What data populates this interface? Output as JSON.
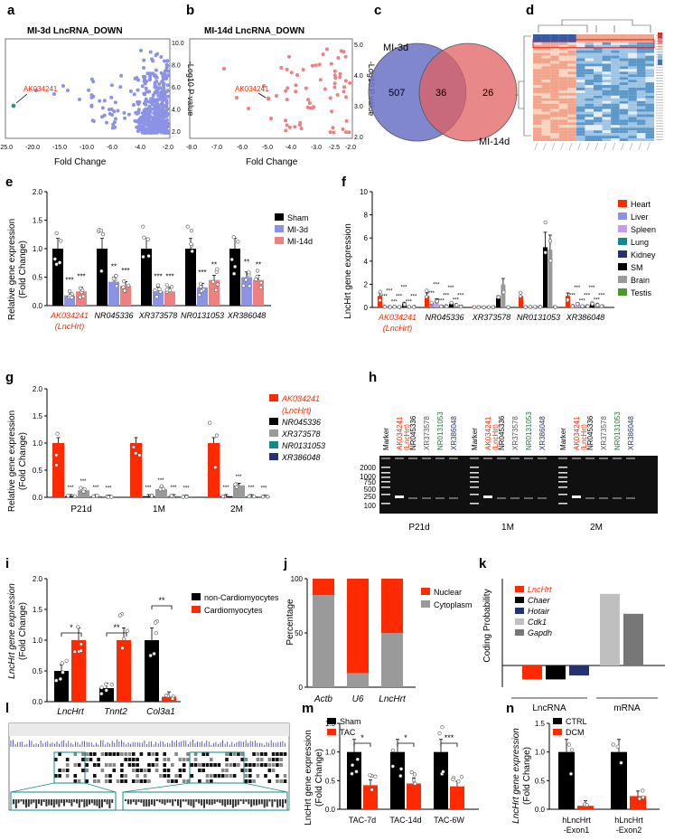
{
  "colors": {
    "black": "#000000",
    "blue": "#8c93e6",
    "red": "#f08080",
    "orange": "#ff2a00",
    "grey": "#9a9a9a",
    "lightgrey": "#bfbfbf",
    "darkgrey": "#777777",
    "green": "#1a7a3a",
    "teal": "#138a8a",
    "navy": "#24336f",
    "venn_blue": "#6a72c6",
    "venn_red": "#e06060"
  },
  "panels": {
    "a": {
      "letter": "a",
      "title": "MI-3d LncRNA_DOWN",
      "xlabel": "Fold Change",
      "ylabel": "-Log10 P value",
      "xticks": [
        "-25.0",
        "-20.0",
        "-15.0",
        "-10.0",
        "-6.0",
        "-4.0",
        "-2.0"
      ],
      "yticks": [
        "2.0",
        "4.0",
        "6.0",
        "8.0",
        "10.0"
      ],
      "annot": "AK034241"
    },
    "b": {
      "letter": "b",
      "title": "MI-14d LncRNA_DOWN",
      "xlabel": "Fold Change",
      "ylabel": "-Log10 P value",
      "xticks": [
        "-8.0",
        "-7.0",
        "-6.0",
        "-5.0",
        "-4.0",
        "-3.0",
        "-2.5",
        "-2.0"
      ],
      "yticks": [
        "2.0",
        "3.0",
        "4.0",
        "5.0"
      ],
      "annot": "AK034241"
    },
    "c": {
      "letter": "c",
      "left_label": "MI-3d",
      "right_label": "MI-14d",
      "left_only": "507",
      "overlap": "36",
      "right_only": "26"
    },
    "d": {
      "letter": "d"
    },
    "e": {
      "letter": "e",
      "ylabel1": "Relative gene expression",
      "ylabel2": "(Fold Change)",
      "yticks": [
        "0.0",
        "0.5",
        "1.0",
        "1.5",
        "2.0"
      ],
      "categories": [
        "AK034241",
        "NR045336",
        "XR373578",
        "NR0131053",
        "XR386048"
      ],
      "cat0_sub": "(LncHrt)",
      "legend": [
        "Sham",
        "MI-3d",
        "MI-14d"
      ],
      "stars": [
        "***",
        "***",
        "**",
        "***",
        "***",
        "***",
        "***",
        "**",
        "**",
        "**"
      ]
    },
    "f": {
      "letter": "f",
      "ylabel": "LncHrt gene expression",
      "yticks": [
        "0",
        "2",
        "4",
        "6",
        "8",
        "10"
      ],
      "categories": [
        "AK034241",
        "NR045336",
        "XR373578",
        "NR0131053",
        "XR386048"
      ],
      "cat0_sub": "(LncHrt)",
      "legend": [
        "Heart",
        "Liver",
        "Spleen",
        "Lung",
        "Kidney",
        "SM",
        "Brain",
        "Testis"
      ]
    },
    "g": {
      "letter": "g",
      "ylabel1": "Relative gene expression",
      "ylabel2": "(Fold Change)",
      "yticks": [
        "0.0",
        "0.5",
        "1.0",
        "1.5",
        "2.0"
      ],
      "categories": [
        "P21d",
        "1M",
        "2M"
      ],
      "legend": [
        "AK034241",
        "(LncHrt)",
        "NR045336",
        "XR373578",
        "NR0131053",
        "XR386048"
      ],
      "stars": "***"
    },
    "h": {
      "letter": "h",
      "lanes": [
        "Marker",
        "AK034241",
        "(LncHrt)",
        "NR045336",
        "XR373578",
        "NR0131053",
        "XR386048"
      ],
      "sizes": [
        "2000",
        "1000",
        "750",
        "500",
        "250",
        "100"
      ],
      "groups": [
        "P21d",
        "1M",
        "2M"
      ]
    },
    "i": {
      "letter": "i",
      "ylabel1": "LncHrt gene expression",
      "ylabel2": "(Fold Change)",
      "yticks": [
        "0.0",
        "0.5",
        "1.0",
        "1.5",
        "2.0"
      ],
      "categories": [
        "LncHrt",
        "Tnnt2",
        "Col3a1"
      ],
      "legend": [
        "non-Cardiomyocytes",
        "Cardiomyocytes"
      ],
      "stars": [
        "*",
        "**",
        "**"
      ]
    },
    "j": {
      "letter": "j",
      "ylabel": "Percentage",
      "yticks": [
        "0",
        "50",
        "100"
      ],
      "categories": [
        "Actb",
        "U6",
        "LncHrt"
      ],
      "legend": [
        "Nuclear",
        "Cytoplasm"
      ]
    },
    "k": {
      "letter": "k",
      "ylabel": "Coding Probability",
      "legend": [
        "LncHrt",
        "Chaer",
        "Hotair",
        "Cdk1",
        "Gapdh"
      ],
      "groups": [
        "LncRNA",
        "mRNA"
      ]
    },
    "l": {
      "letter": "l"
    },
    "m": {
      "letter": "m",
      "ylabel1": "LncHrt gene expression",
      "ylabel2": "(Fold Change)",
      "yticks": [
        "0.0",
        "0.5",
        "1.0",
        "1.5"
      ],
      "categories": [
        "TAC-7d",
        "TAC-14d",
        "TAC-6W"
      ],
      "legend": [
        "Sham",
        "TAC"
      ],
      "stars": [
        "*",
        "*",
        "***"
      ]
    },
    "n": {
      "letter": "n",
      "ylabel1": "LncHrt gene expression",
      "ylabel2": "(Fold Change)",
      "yticks": [
        "0.0",
        "0.5",
        "1.0",
        "1.5"
      ],
      "cat1": [
        "hLncHrt",
        "-Exon1"
      ],
      "cat2": [
        "hLncHrt",
        "-Exon2"
      ],
      "legend": [
        "CTRL",
        "DCM"
      ]
    }
  },
  "chart_data": [
    {
      "panel": "e",
      "type": "bar",
      "categories": [
        "AK034241",
        "NR045336",
        "XR373578",
        "NR0131053",
        "XR386048"
      ],
      "series": [
        {
          "name": "Sham",
          "values": [
            1.0,
            1.0,
            1.0,
            1.0,
            1.0
          ]
        },
        {
          "name": "MI-3d",
          "values": [
            0.18,
            0.42,
            0.25,
            0.32,
            0.5
          ]
        },
        {
          "name": "MI-14d",
          "values": [
            0.25,
            0.35,
            0.25,
            0.45,
            0.45
          ]
        }
      ],
      "ylim": [
        0,
        2
      ]
    },
    {
      "panel": "f",
      "type": "bar",
      "categories": [
        "AK034241",
        "NR045336",
        "XR373578",
        "NR0131053",
        "XR386048"
      ],
      "series": [
        {
          "name": "Heart",
          "values": [
            1.0,
            1.0,
            0.02,
            1.0,
            1.0
          ]
        },
        {
          "name": "Liver",
          "values": [
            0.05,
            0.3,
            0.02,
            0.05,
            0.1
          ]
        },
        {
          "name": "Spleen",
          "values": [
            0.05,
            0.6,
            0.02,
            0.05,
            0.3
          ]
        },
        {
          "name": "Lung",
          "values": [
            0.05,
            0.1,
            0.02,
            0.05,
            0.1
          ]
        },
        {
          "name": "Kidney",
          "values": [
            0.05,
            0.1,
            0.02,
            0.05,
            0.1
          ]
        },
        {
          "name": "SM",
          "values": [
            0.35,
            0.3,
            0.8,
            5.2,
            0.3
          ]
        },
        {
          "name": "Brain",
          "values": [
            0.05,
            0.2,
            2.0,
            5.0,
            0.2
          ]
        },
        {
          "name": "Testis",
          "values": [
            0.05,
            0.1,
            0.02,
            0.05,
            0.1
          ]
        }
      ],
      "ylim": [
        0,
        10
      ]
    },
    {
      "panel": "g",
      "type": "bar",
      "categories": [
        "P21d",
        "1M",
        "2M"
      ],
      "series": [
        {
          "name": "AK034241 (LncHrt)",
          "values": [
            1.0,
            1.0,
            1.0
          ]
        },
        {
          "name": "NR045336",
          "values": [
            0.02,
            0.02,
            0.02
          ]
        },
        {
          "name": "XR373578",
          "values": [
            0.13,
            0.15,
            0.22
          ]
        },
        {
          "name": "NR0131053",
          "values": [
            0.02,
            0.02,
            0.02
          ]
        },
        {
          "name": "XR386048",
          "values": [
            0.01,
            0.01,
            0.01
          ]
        }
      ],
      "ylim": [
        0,
        2
      ]
    },
    {
      "panel": "i",
      "type": "bar",
      "categories": [
        "LncHrt",
        "Tnnt2",
        "Col3a1"
      ],
      "series": [
        {
          "name": "non-Cardiomyocytes",
          "values": [
            0.5,
            0.22,
            1.0
          ]
        },
        {
          "name": "Cardiomyocytes",
          "values": [
            1.0,
            1.0,
            0.08
          ]
        }
      ],
      "ylim": [
        0,
        2
      ]
    },
    {
      "panel": "j",
      "type": "bar",
      "categories": [
        "Actb",
        "U6",
        "LncHrt"
      ],
      "series": [
        {
          "name": "Cytoplasm",
          "values": [
            85,
            13,
            50
          ]
        },
        {
          "name": "Nuclear",
          "values": [
            15,
            87,
            50
          ]
        }
      ],
      "ylim": [
        0,
        100
      ]
    },
    {
      "panel": "k",
      "type": "bar",
      "categories": [
        "LncHrt",
        "Chaer",
        "Hotair",
        "Cdk1",
        "Gapdh"
      ],
      "values": [
        -0.14,
        -0.14,
        -0.1,
        0.72,
        0.52
      ]
    },
    {
      "panel": "m",
      "type": "bar",
      "categories": [
        "TAC-7d",
        "TAC-14d",
        "TAC-6W"
      ],
      "series": [
        {
          "name": "Sham",
          "values": [
            1.0,
            1.0,
            1.0
          ]
        },
        {
          "name": "TAC",
          "values": [
            0.42,
            0.45,
            0.4
          ]
        }
      ],
      "ylim": [
        0,
        1.5
      ]
    },
    {
      "panel": "n",
      "type": "bar",
      "categories": [
        "hLncHrt -Exon1",
        "hLncHrt -Exon2"
      ],
      "series": [
        {
          "name": "CTRL",
          "values": [
            1.0,
            1.0
          ]
        },
        {
          "name": "DCM",
          "values": [
            0.06,
            0.23
          ]
        }
      ],
      "ylim": [
        0,
        1.5
      ]
    }
  ]
}
